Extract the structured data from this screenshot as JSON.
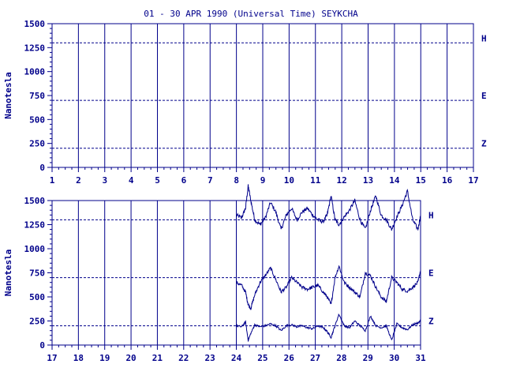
{
  "title": "01 - 30 APR 1990 (Universal Time) SEYKCHA",
  "chart_data": [
    {
      "type": "line",
      "ylabel": "Nanotesla",
      "ylim": [
        0,
        1500
      ],
      "yticks": [
        "0",
        "250",
        "500",
        "750",
        "1000",
        "1250",
        "1500"
      ],
      "xlim": [
        1,
        17
      ],
      "xticks": [
        "1",
        "2",
        "3",
        "4",
        "5",
        "6",
        "7",
        "8",
        "9",
        "10",
        "11",
        "12",
        "13",
        "14",
        "15",
        "16",
        "17"
      ],
      "baselines": [
        {
          "label": "H",
          "value": 1300
        },
        {
          "label": "E",
          "value": 700
        },
        {
          "label": "Z",
          "value": 200
        }
      ],
      "grid": true,
      "series": []
    },
    {
      "type": "line",
      "ylabel": "Nanotesla",
      "ylim": [
        0,
        1500
      ],
      "yticks": [
        "0",
        "250",
        "500",
        "750",
        "1000",
        "1250",
        "1500"
      ],
      "xlim": [
        17,
        31
      ],
      "xticks": [
        "17",
        "18",
        "19",
        "20",
        "21",
        "22",
        "23",
        "24",
        "25",
        "26",
        "27",
        "28",
        "29",
        "30",
        "31"
      ],
      "baselines": [
        {
          "label": "H",
          "value": 1300
        },
        {
          "label": "E",
          "value": 700
        },
        {
          "label": "Z",
          "value": 200
        }
      ],
      "grid": true,
      "series": [
        {
          "x": [
            24.0,
            24.2,
            24.35,
            24.45,
            24.55,
            24.7,
            24.9,
            25.1,
            25.3,
            25.5,
            25.7,
            25.9,
            26.1,
            26.3,
            26.5,
            26.7,
            26.9,
            27.1,
            27.3,
            27.45,
            27.6,
            27.75,
            27.9,
            28.1,
            28.3,
            28.5,
            28.7,
            28.9,
            29.1,
            29.3,
            29.5,
            29.7,
            29.9,
            30.1,
            30.3,
            30.5,
            30.7,
            30.9,
            31.0
          ],
          "values": [
            1350,
            1320,
            1420,
            1650,
            1500,
            1300,
            1250,
            1320,
            1480,
            1380,
            1200,
            1350,
            1420,
            1300,
            1380,
            1420,
            1350,
            1300,
            1280,
            1350,
            1550,
            1300,
            1250,
            1330,
            1400,
            1500,
            1300,
            1200,
            1400,
            1550,
            1350,
            1300,
            1200,
            1330,
            1450,
            1600,
            1300,
            1200,
            1350
          ]
        },
        {
          "x": [
            24.0,
            24.2,
            24.35,
            24.45,
            24.55,
            24.7,
            24.9,
            25.1,
            25.3,
            25.5,
            25.7,
            25.9,
            26.1,
            26.3,
            26.5,
            26.7,
            26.9,
            27.1,
            27.3,
            27.45,
            27.6,
            27.75,
            27.9,
            28.1,
            28.3,
            28.5,
            28.7,
            28.9,
            29.1,
            29.3,
            29.5,
            29.7,
            29.9,
            30.1,
            30.3,
            30.5,
            30.7,
            30.9,
            31.0
          ],
          "values": [
            650,
            620,
            550,
            420,
            380,
            520,
            650,
            720,
            800,
            680,
            550,
            600,
            700,
            650,
            600,
            580,
            600,
            620,
            550,
            500,
            420,
            700,
            820,
            650,
            600,
            550,
            500,
            750,
            720,
            600,
            500,
            450,
            700,
            650,
            580,
            560,
            600,
            650,
            780
          ]
        },
        {
          "x": [
            24.0,
            24.2,
            24.35,
            24.45,
            24.55,
            24.7,
            24.9,
            25.1,
            25.3,
            25.5,
            25.7,
            25.9,
            26.1,
            26.3,
            26.5,
            26.7,
            26.9,
            27.1,
            27.3,
            27.45,
            27.6,
            27.75,
            27.9,
            28.1,
            28.3,
            28.5,
            28.7,
            28.9,
            29.1,
            29.3,
            29.5,
            29.7,
            29.9,
            30.1,
            30.3,
            30.5,
            30.7,
            30.9,
            31.0
          ],
          "values": [
            200,
            190,
            240,
            50,
            120,
            210,
            190,
            200,
            220,
            200,
            150,
            200,
            210,
            190,
            200,
            180,
            170,
            200,
            180,
            140,
            80,
            200,
            320,
            200,
            180,
            250,
            200,
            150,
            300,
            200,
            180,
            200,
            50,
            220,
            180,
            160,
            210,
            230,
            250
          ]
        }
      ]
    }
  ]
}
